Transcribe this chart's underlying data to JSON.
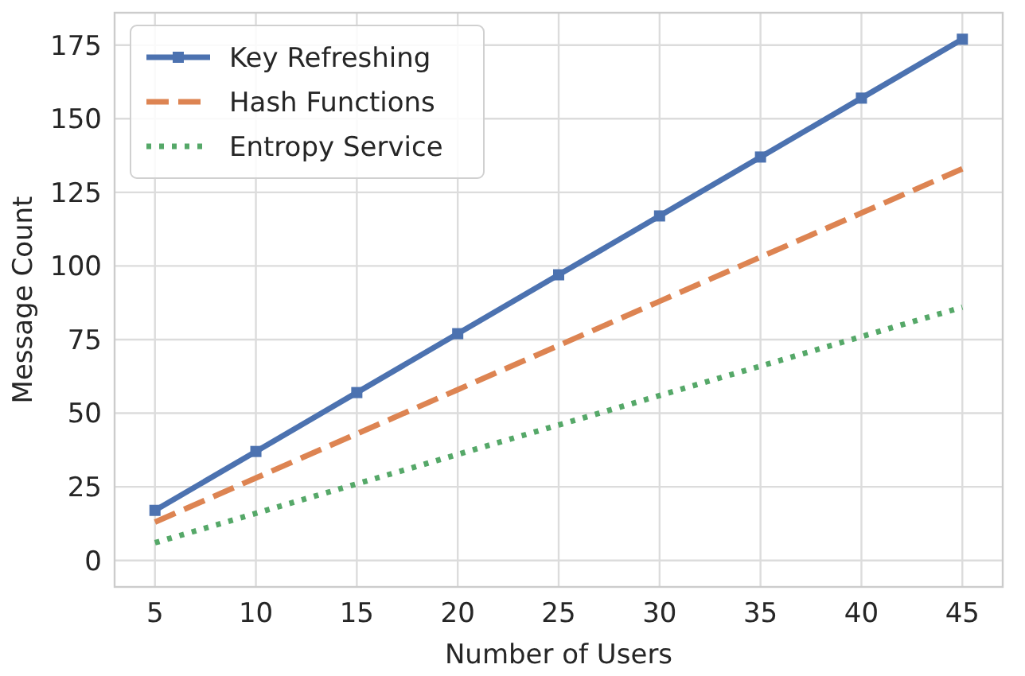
{
  "chart_data": {
    "type": "line",
    "xlabel": "Number of Users",
    "ylabel": "Message Count",
    "x": [
      5,
      10,
      15,
      20,
      25,
      30,
      35,
      40,
      45
    ],
    "series": [
      {
        "name": "Key Refreshing",
        "color": "#4c72b0",
        "line_style": "solid",
        "marker": "square",
        "values": [
          17,
          37,
          57,
          77,
          97,
          117,
          137,
          157,
          177
        ]
      },
      {
        "name": "Hash Functions",
        "color": "#dd8452",
        "line_style": "dashed",
        "marker": "none",
        "values": [
          13,
          28,
          43,
          58,
          73,
          88,
          103,
          118,
          133
        ]
      },
      {
        "name": "Entropy Service",
        "color": "#55a868",
        "line_style": "dotted",
        "marker": "none",
        "values": [
          6,
          16,
          26,
          36,
          46,
          56,
          66,
          76,
          86
        ]
      }
    ],
    "xlim": [
      3,
      47
    ],
    "ylim": [
      -9,
      186
    ],
    "xticks": [
      5,
      10,
      15,
      20,
      25,
      30,
      35,
      40,
      45
    ],
    "yticks": [
      0,
      25,
      50,
      75,
      100,
      125,
      150,
      175
    ],
    "grid": true,
    "legend": "top left"
  }
}
